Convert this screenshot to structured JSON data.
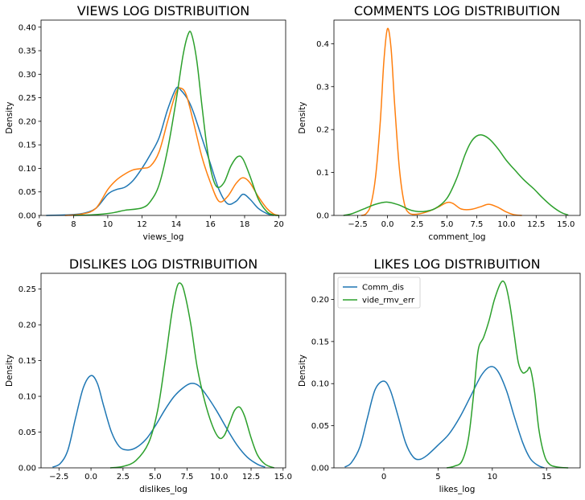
{
  "colors": {
    "blue": "#1f77b4",
    "orange": "#ff7f0e",
    "green": "#2ca02c"
  },
  "chart_data": [
    {
      "type": "line",
      "title": "VIEWS LOG DISTRIBUITION",
      "xlabel": "views_log",
      "ylabel": "Density",
      "xlim": [
        6.1,
        20.4
      ],
      "ylim": [
        0,
        0.415
      ],
      "xticks": [
        6,
        8,
        10,
        12,
        14,
        16,
        18,
        20
      ],
      "yticks": [
        0.0,
        0.05,
        0.1,
        0.15,
        0.2,
        0.25,
        0.3,
        0.35,
        0.4
      ],
      "ytick_labels": [
        "0.00",
        "0.05",
        "0.10",
        "0.15",
        "0.20",
        "0.25",
        "0.30",
        "0.35",
        "0.40"
      ],
      "legend": null,
      "series": [
        {
          "color": "blue",
          "points": [
            [
              6.4,
              0.0
            ],
            [
              7.5,
              0.001
            ],
            [
              8.5,
              0.004
            ],
            [
              9.3,
              0.015
            ],
            [
              10.0,
              0.045
            ],
            [
              10.5,
              0.055
            ],
            [
              11.0,
              0.06
            ],
            [
              11.5,
              0.075
            ],
            [
              12.0,
              0.1
            ],
            [
              12.5,
              0.13
            ],
            [
              13.0,
              0.165
            ],
            [
              13.5,
              0.225
            ],
            [
              14.0,
              0.27
            ],
            [
              14.3,
              0.265
            ],
            [
              14.7,
              0.245
            ],
            [
              15.0,
              0.22
            ],
            [
              15.5,
              0.165
            ],
            [
              16.0,
              0.11
            ],
            [
              16.5,
              0.055
            ],
            [
              17.0,
              0.025
            ],
            [
              17.5,
              0.03
            ],
            [
              17.9,
              0.045
            ],
            [
              18.3,
              0.035
            ],
            [
              18.8,
              0.015
            ],
            [
              19.3,
              0.004
            ],
            [
              19.7,
              0.0
            ]
          ]
        },
        {
          "color": "orange",
          "points": [
            [
              7.5,
              0.0
            ],
            [
              8.5,
              0.003
            ],
            [
              9.3,
              0.015
            ],
            [
              10.0,
              0.055
            ],
            [
              10.5,
              0.075
            ],
            [
              11.0,
              0.088
            ],
            [
              11.5,
              0.097
            ],
            [
              12.0,
              0.1
            ],
            [
              12.5,
              0.105
            ],
            [
              13.0,
              0.135
            ],
            [
              13.5,
              0.2
            ],
            [
              14.0,
              0.262
            ],
            [
              14.3,
              0.27
            ],
            [
              14.6,
              0.255
            ],
            [
              15.0,
              0.2
            ],
            [
              15.5,
              0.125
            ],
            [
              16.0,
              0.07
            ],
            [
              16.5,
              0.03
            ],
            [
              17.0,
              0.04
            ],
            [
              17.5,
              0.068
            ],
            [
              17.9,
              0.08
            ],
            [
              18.3,
              0.07
            ],
            [
              18.8,
              0.04
            ],
            [
              19.3,
              0.015
            ],
            [
              19.7,
              0.003
            ],
            [
              20.0,
              0.0
            ]
          ]
        },
        {
          "color": "green",
          "points": [
            [
              8.0,
              0.0
            ],
            [
              9.0,
              0.001
            ],
            [
              10.0,
              0.004
            ],
            [
              10.5,
              0.007
            ],
            [
              11.0,
              0.011
            ],
            [
              12.0,
              0.016
            ],
            [
              12.5,
              0.03
            ],
            [
              13.0,
              0.065
            ],
            [
              13.5,
              0.14
            ],
            [
              14.0,
              0.245
            ],
            [
              14.4,
              0.34
            ],
            [
              14.7,
              0.385
            ],
            [
              14.9,
              0.385
            ],
            [
              15.2,
              0.33
            ],
            [
              15.5,
              0.235
            ],
            [
              15.8,
              0.145
            ],
            [
              16.1,
              0.085
            ],
            [
              16.4,
              0.06
            ],
            [
              16.8,
              0.07
            ],
            [
              17.2,
              0.105
            ],
            [
              17.6,
              0.125
            ],
            [
              17.9,
              0.12
            ],
            [
              18.3,
              0.085
            ],
            [
              18.8,
              0.035
            ],
            [
              19.3,
              0.008
            ],
            [
              19.7,
              0.001
            ],
            [
              20.0,
              0.0
            ]
          ]
        }
      ]
    },
    {
      "type": "line",
      "title": "COMMENTS LOG DISTRIBUITION",
      "xlabel": "comment_log",
      "ylabel": "Density",
      "xlim": [
        -4.5,
        16.2
      ],
      "ylim": [
        0,
        0.455
      ],
      "xticks": [
        -2.5,
        0.0,
        2.5,
        5.0,
        7.5,
        10.0,
        12.5,
        15.0
      ],
      "xtick_labels": [
        "−2.5",
        "0.0",
        "2.5",
        "5.0",
        "7.5",
        "10.0",
        "12.5",
        "15.0"
      ],
      "yticks": [
        0.0,
        0.1,
        0.2,
        0.3,
        0.4
      ],
      "ytick_labels": [
        "0.0",
        "0.1",
        "0.2",
        "0.3",
        "0.4"
      ],
      "legend": null,
      "series": [
        {
          "color": "orange",
          "points": [
            [
              -2.2,
              0.0
            ],
            [
              -1.8,
              0.004
            ],
            [
              -1.4,
              0.025
            ],
            [
              -1.0,
              0.09
            ],
            [
              -0.6,
              0.22
            ],
            [
              -0.3,
              0.36
            ],
            [
              0.0,
              0.435
            ],
            [
              0.3,
              0.39
            ],
            [
              0.6,
              0.26
            ],
            [
              1.0,
              0.11
            ],
            [
              1.4,
              0.03
            ],
            [
              1.8,
              0.006
            ],
            [
              2.5,
              0.003
            ],
            [
              3.5,
              0.01
            ],
            [
              4.3,
              0.02
            ],
            [
              5.0,
              0.03
            ],
            [
              5.5,
              0.028
            ],
            [
              6.2,
              0.015
            ],
            [
              7.0,
              0.014
            ],
            [
              7.8,
              0.02
            ],
            [
              8.5,
              0.026
            ],
            [
              9.2,
              0.02
            ],
            [
              10.0,
              0.008
            ],
            [
              10.6,
              0.002
            ],
            [
              11.3,
              0.0
            ]
          ]
        },
        {
          "color": "green",
          "points": [
            [
              -3.7,
              0.0
            ],
            [
              -3.0,
              0.004
            ],
            [
              -2.0,
              0.015
            ],
            [
              -1.0,
              0.026
            ],
            [
              0.0,
              0.031
            ],
            [
              1.0,
              0.024
            ],
            [
              2.0,
              0.012
            ],
            [
              3.0,
              0.009
            ],
            [
              4.0,
              0.016
            ],
            [
              5.0,
              0.04
            ],
            [
              5.8,
              0.085
            ],
            [
              6.5,
              0.14
            ],
            [
              7.0,
              0.17
            ],
            [
              7.5,
              0.185
            ],
            [
              8.0,
              0.187
            ],
            [
              8.6,
              0.177
            ],
            [
              9.3,
              0.155
            ],
            [
              10.0,
              0.128
            ],
            [
              10.8,
              0.103
            ],
            [
              11.5,
              0.082
            ],
            [
              12.3,
              0.062
            ],
            [
              13.0,
              0.042
            ],
            [
              13.8,
              0.022
            ],
            [
              14.6,
              0.007
            ],
            [
              15.2,
              0.001
            ]
          ]
        }
      ]
    },
    {
      "type": "line",
      "title": "DISLIKES LOG DISTRIBUITION",
      "xlabel": "dislikes_log",
      "ylabel": "Density",
      "xlim": [
        -3.9,
        15.2
      ],
      "ylim": [
        0,
        0.272
      ],
      "xticks": [
        -2.5,
        0.0,
        2.5,
        5.0,
        7.5,
        10.0,
        12.5,
        15.0
      ],
      "xtick_labels": [
        "−2.5",
        "0.0",
        "2.5",
        "5.0",
        "7.5",
        "10.0",
        "12.5",
        "15.0"
      ],
      "yticks": [
        0.0,
        0.05,
        0.1,
        0.15,
        0.2,
        0.25
      ],
      "ytick_labels": [
        "0.00",
        "0.05",
        "0.10",
        "0.15",
        "0.20",
        "0.25"
      ],
      "legend": null,
      "series": [
        {
          "color": "blue",
          "points": [
            [
              -3.0,
              0.001
            ],
            [
              -2.4,
              0.006
            ],
            [
              -1.8,
              0.025
            ],
            [
              -1.2,
              0.07
            ],
            [
              -0.6,
              0.112
            ],
            [
              0.0,
              0.129
            ],
            [
              0.5,
              0.118
            ],
            [
              1.0,
              0.086
            ],
            [
              1.6,
              0.05
            ],
            [
              2.2,
              0.03
            ],
            [
              2.8,
              0.025
            ],
            [
              3.5,
              0.028
            ],
            [
              4.3,
              0.04
            ],
            [
              5.0,
              0.058
            ],
            [
              5.8,
              0.082
            ],
            [
              6.5,
              0.1
            ],
            [
              7.2,
              0.112
            ],
            [
              7.8,
              0.118
            ],
            [
              8.4,
              0.115
            ],
            [
              9.0,
              0.102
            ],
            [
              9.8,
              0.08
            ],
            [
              10.6,
              0.055
            ],
            [
              11.4,
              0.032
            ],
            [
              12.2,
              0.015
            ],
            [
              13.0,
              0.005
            ],
            [
              13.6,
              0.001
            ]
          ]
        },
        {
          "color": "green",
          "points": [
            [
              1.5,
              0.0
            ],
            [
              2.5,
              0.002
            ],
            [
              3.5,
              0.01
            ],
            [
              4.5,
              0.035
            ],
            [
              5.2,
              0.08
            ],
            [
              5.8,
              0.15
            ],
            [
              6.3,
              0.215
            ],
            [
              6.7,
              0.252
            ],
            [
              7.0,
              0.258
            ],
            [
              7.3,
              0.245
            ],
            [
              7.8,
              0.2
            ],
            [
              8.3,
              0.14
            ],
            [
              8.9,
              0.092
            ],
            [
              9.5,
              0.058
            ],
            [
              10.0,
              0.042
            ],
            [
              10.4,
              0.045
            ],
            [
              10.8,
              0.062
            ],
            [
              11.2,
              0.08
            ],
            [
              11.6,
              0.085
            ],
            [
              12.0,
              0.072
            ],
            [
              12.5,
              0.042
            ],
            [
              13.0,
              0.018
            ],
            [
              13.6,
              0.005
            ],
            [
              14.3,
              0.0
            ]
          ]
        }
      ]
    },
    {
      "type": "line",
      "title": "LIKES LOG DISTRIBUITION",
      "xlabel": "likes_log",
      "ylabel": "Density",
      "xlim": [
        -4.6,
        18.1
      ],
      "ylim": [
        0,
        0.231
      ],
      "xticks": [
        0,
        5,
        10,
        15
      ],
      "yticks": [
        0.0,
        0.05,
        0.1,
        0.15,
        0.2
      ],
      "ytick_labels": [
        "0.00",
        "0.05",
        "0.10",
        "0.15",
        "0.20"
      ],
      "legend": {
        "placement": "upper-left",
        "entries": [
          {
            "label": "Comm_dis",
            "color": "blue"
          },
          {
            "label": "vide_rmv_err",
            "color": "green"
          }
        ]
      },
      "series": [
        {
          "name": "Comm_dis",
          "color": "blue",
          "points": [
            [
              -3.6,
              0.001
            ],
            [
              -3.0,
              0.006
            ],
            [
              -2.2,
              0.025
            ],
            [
              -1.5,
              0.06
            ],
            [
              -0.8,
              0.093
            ],
            [
              0.0,
              0.103
            ],
            [
              0.6,
              0.092
            ],
            [
              1.3,
              0.062
            ],
            [
              2.0,
              0.03
            ],
            [
              2.7,
              0.013
            ],
            [
              3.3,
              0.01
            ],
            [
              4.0,
              0.015
            ],
            [
              5.0,
              0.027
            ],
            [
              6.0,
              0.04
            ],
            [
              7.0,
              0.06
            ],
            [
              8.0,
              0.085
            ],
            [
              9.0,
              0.11
            ],
            [
              9.8,
              0.12
            ],
            [
              10.5,
              0.115
            ],
            [
              11.3,
              0.092
            ],
            [
              12.0,
              0.062
            ],
            [
              12.8,
              0.03
            ],
            [
              13.5,
              0.011
            ],
            [
              14.2,
              0.003
            ],
            [
              14.8,
              0.0
            ]
          ]
        },
        {
          "color": "green",
          "name": "vide_rmv_err",
          "points": [
            [
              5.8,
              0.0
            ],
            [
              6.5,
              0.002
            ],
            [
              7.2,
              0.008
            ],
            [
              7.8,
              0.035
            ],
            [
              8.3,
              0.09
            ],
            [
              8.7,
              0.14
            ],
            [
              9.2,
              0.155
            ],
            [
              9.7,
              0.175
            ],
            [
              10.2,
              0.2
            ],
            [
              10.8,
              0.22
            ],
            [
              11.2,
              0.218
            ],
            [
              11.6,
              0.195
            ],
            [
              12.0,
              0.16
            ],
            [
              12.4,
              0.125
            ],
            [
              12.8,
              0.113
            ],
            [
              13.2,
              0.115
            ],
            [
              13.5,
              0.118
            ],
            [
              13.9,
              0.09
            ],
            [
              14.3,
              0.045
            ],
            [
              14.8,
              0.015
            ],
            [
              15.3,
              0.004
            ],
            [
              16.0,
              0.001
            ],
            [
              17.0,
              0.0
            ]
          ]
        }
      ]
    }
  ]
}
